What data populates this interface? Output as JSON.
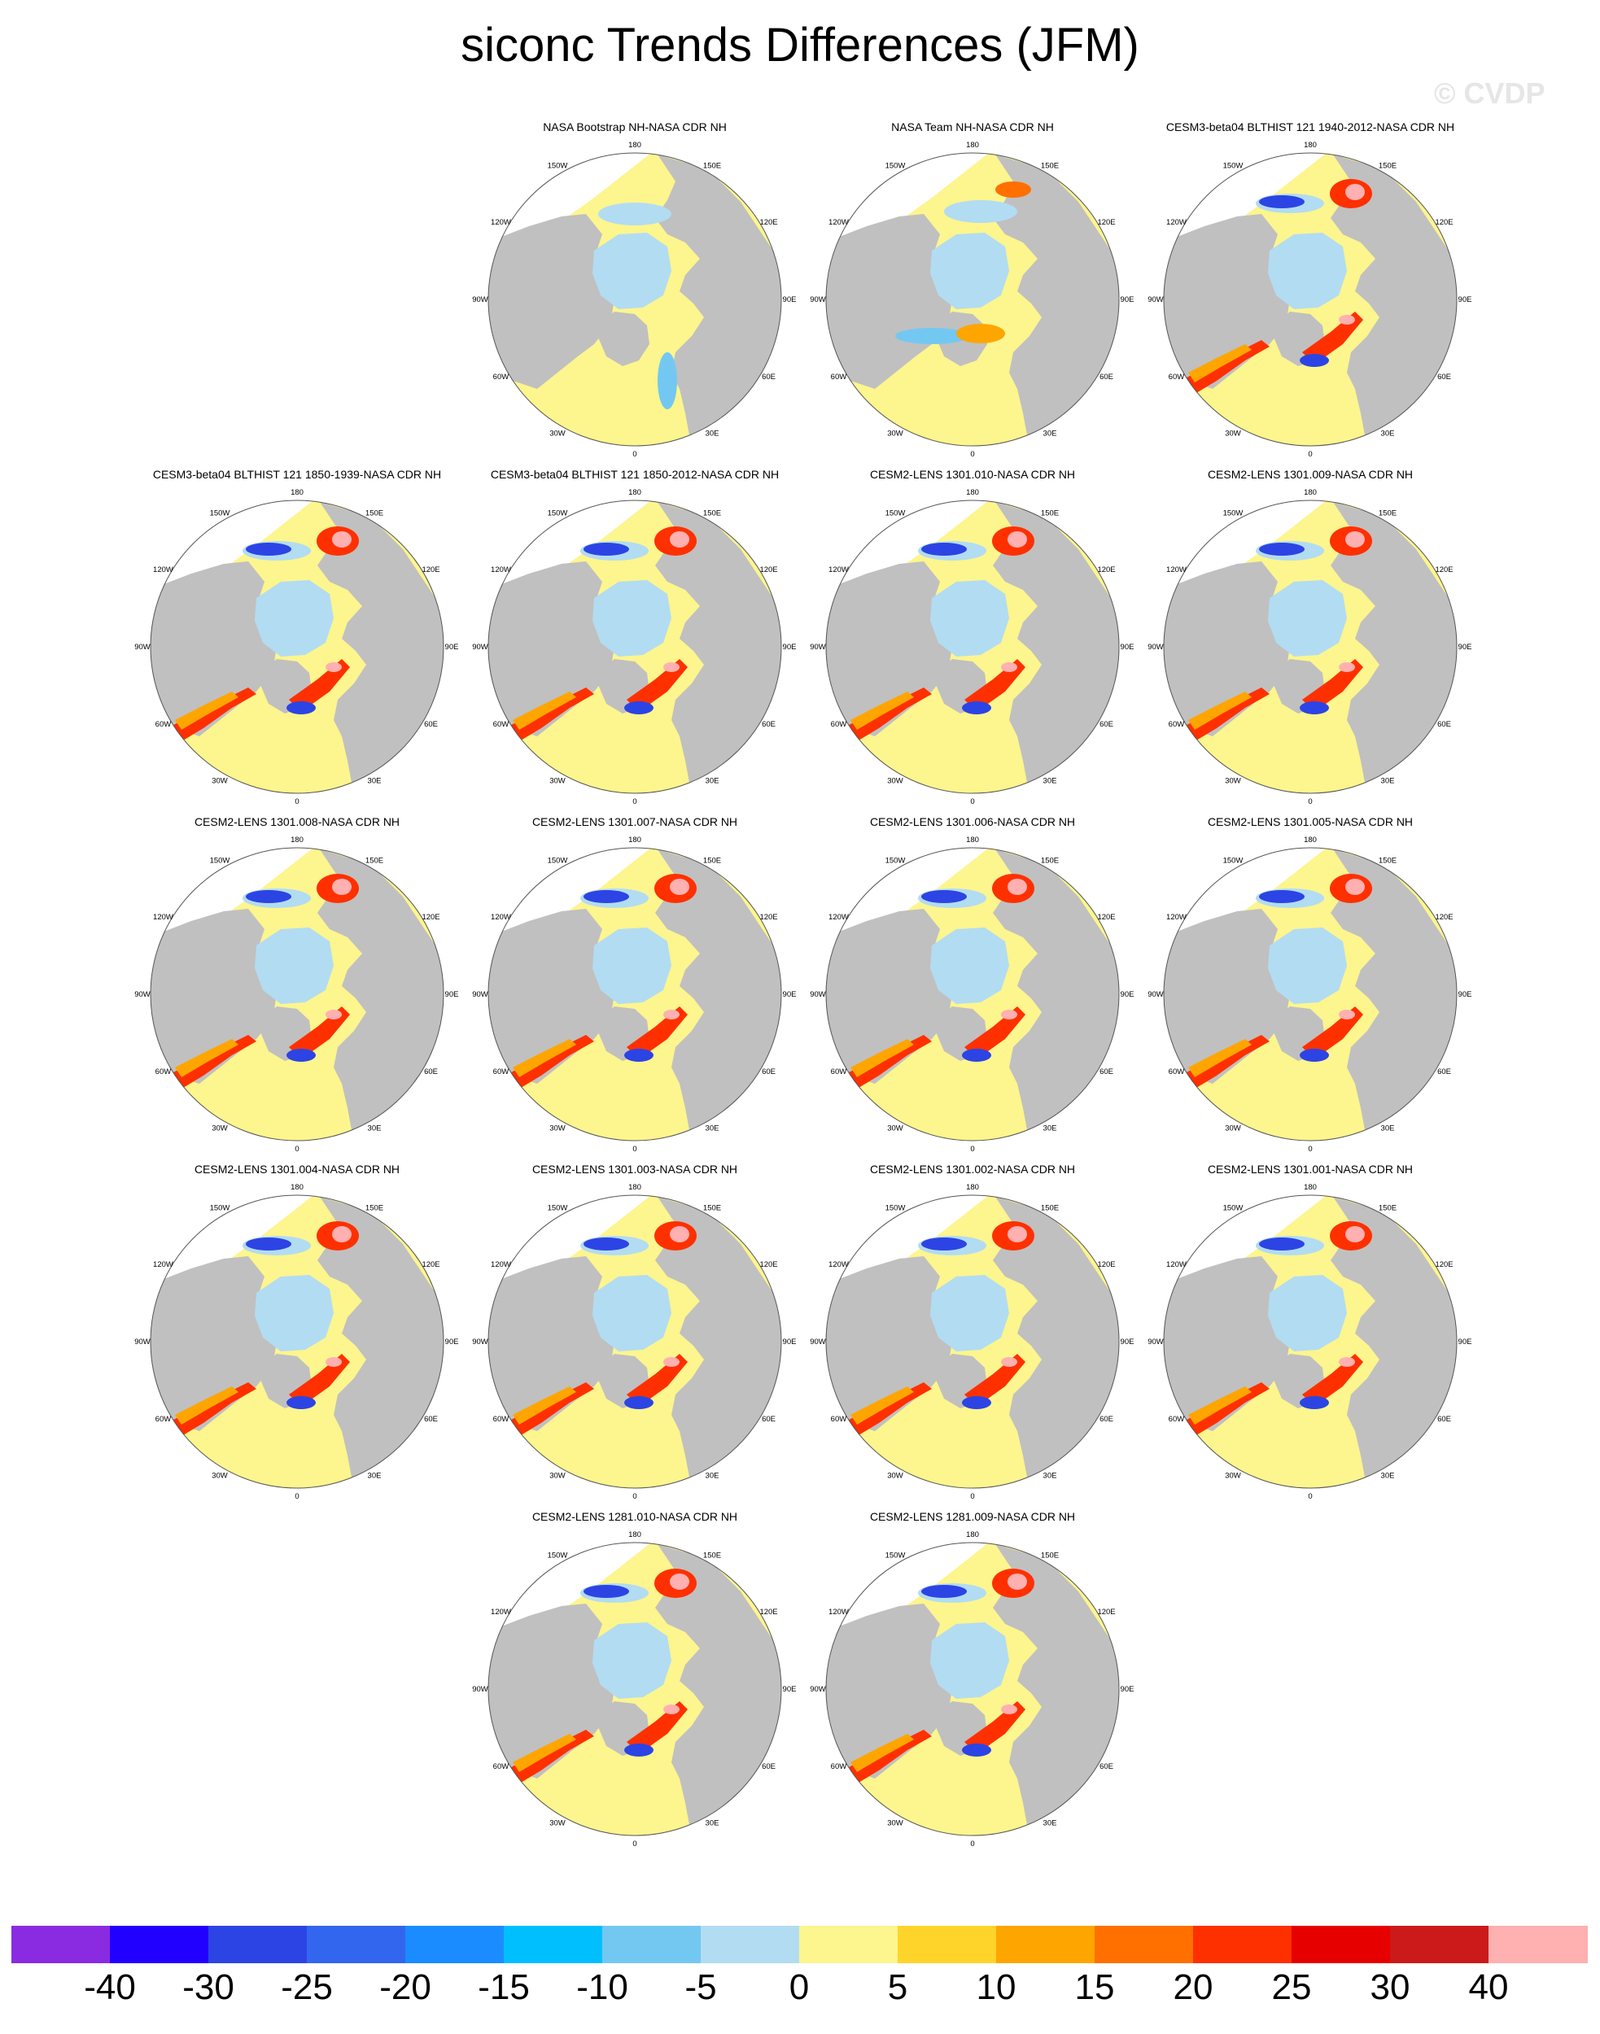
{
  "title": "siconc Trends Differences (JFM)",
  "watermark": "© CVDP",
  "longitude_labels": [
    "180",
    "150E",
    "120E",
    "90E",
    "60E",
    "30E",
    "0",
    "30W",
    "60W",
    "90W",
    "120W",
    "150W"
  ],
  "panels": [
    {
      "title": "NASA Bootstrap NH-NASA CDR NH",
      "row": 0,
      "col": 1,
      "pattern": "bootstrap"
    },
    {
      "title": "NASA Team NH-NASA CDR NH",
      "row": 0,
      "col": 2,
      "pattern": "team"
    },
    {
      "title": "CESM3-beta04 BLTHIST 121 1940-2012-NASA CDR NH",
      "row": 0,
      "col": 3,
      "pattern": "model"
    },
    {
      "title": "CESM3-beta04 BLTHIST 121 1850-1939-NASA CDR NH",
      "row": 1,
      "col": 0,
      "pattern": "model"
    },
    {
      "title": "CESM3-beta04 BLTHIST 121 1850-2012-NASA CDR NH",
      "row": 1,
      "col": 1,
      "pattern": "model"
    },
    {
      "title": "CESM2-LENS 1301.010-NASA CDR NH",
      "row": 1,
      "col": 2,
      "pattern": "model"
    },
    {
      "title": "CESM2-LENS 1301.009-NASA CDR NH",
      "row": 1,
      "col": 3,
      "pattern": "model"
    },
    {
      "title": "CESM2-LENS 1301.008-NASA CDR NH",
      "row": 2,
      "col": 0,
      "pattern": "model"
    },
    {
      "title": "CESM2-LENS 1301.007-NASA CDR NH",
      "row": 2,
      "col": 1,
      "pattern": "model"
    },
    {
      "title": "CESM2-LENS 1301.006-NASA CDR NH",
      "row": 2,
      "col": 2,
      "pattern": "model"
    },
    {
      "title": "CESM2-LENS 1301.005-NASA CDR NH",
      "row": 2,
      "col": 3,
      "pattern": "model"
    },
    {
      "title": "CESM2-LENS 1301.004-NASA CDR NH",
      "row": 3,
      "col": 0,
      "pattern": "model"
    },
    {
      "title": "CESM2-LENS 1301.003-NASA CDR NH",
      "row": 3,
      "col": 1,
      "pattern": "model"
    },
    {
      "title": "CESM2-LENS 1301.002-NASA CDR NH",
      "row": 3,
      "col": 2,
      "pattern": "model"
    },
    {
      "title": "CESM2-LENS 1301.001-NASA CDR NH",
      "row": 3,
      "col": 3,
      "pattern": "model"
    },
    {
      "title": "CESM2-LENS 1281.010-NASA CDR NH",
      "row": 4,
      "col": 1,
      "pattern": "model"
    },
    {
      "title": "CESM2-LENS 1281.009-NASA CDR NH",
      "row": 4,
      "col": 2,
      "pattern": "model"
    }
  ],
  "colors": {
    "land": "#c0c0c0",
    "ocean_zero": "#fdf58e",
    "no_ice": "#ffffff",
    "slight_negative": "#b2dcf2"
  },
  "colorbar": {
    "colors": [
      "#8a2be2",
      "#2200ff",
      "#2c44e4",
      "#3366ee",
      "#1a8cff",
      "#00bfff",
      "#73c8f2",
      "#b2dcf2",
      "#fdf58e",
      "#ffd42a",
      "#ffa500",
      "#ff7000",
      "#ff3000",
      "#e60000",
      "#cc1a1a",
      "#ffb0b0"
    ],
    "labels": [
      "-40",
      "-30",
      "-25",
      "-20",
      "-15",
      "-10",
      "-5",
      "0",
      "5",
      "10",
      "15",
      "20",
      "25",
      "30",
      "40"
    ]
  }
}
